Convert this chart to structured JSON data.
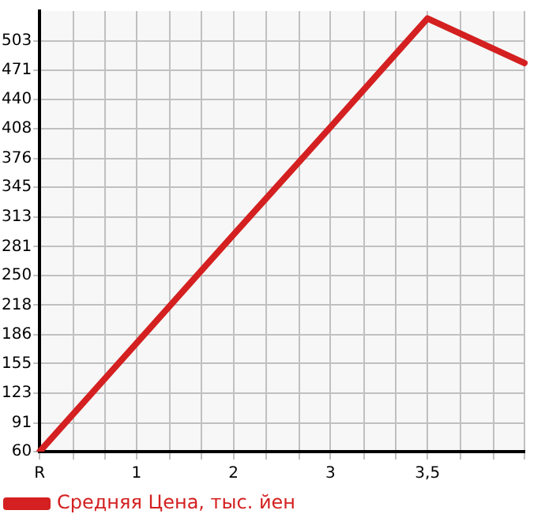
{
  "chart_data": {
    "type": "line",
    "categories": [
      "R",
      "1",
      "2",
      "3",
      "3,5",
      null
    ],
    "series": [
      {
        "name": "Средняя Цена, тыс. йен",
        "color": "#d42020",
        "values": [
          60,
          177,
          294,
          410,
          527,
          479
        ]
      }
    ],
    "ylim": [
      60,
      535
    ],
    "yticks": [
      60,
      91,
      123,
      155,
      186,
      218,
      250,
      281,
      313,
      345,
      376,
      408,
      440,
      471,
      503
    ],
    "grid": true,
    "legend": "bottom",
    "marker": "none"
  }
}
